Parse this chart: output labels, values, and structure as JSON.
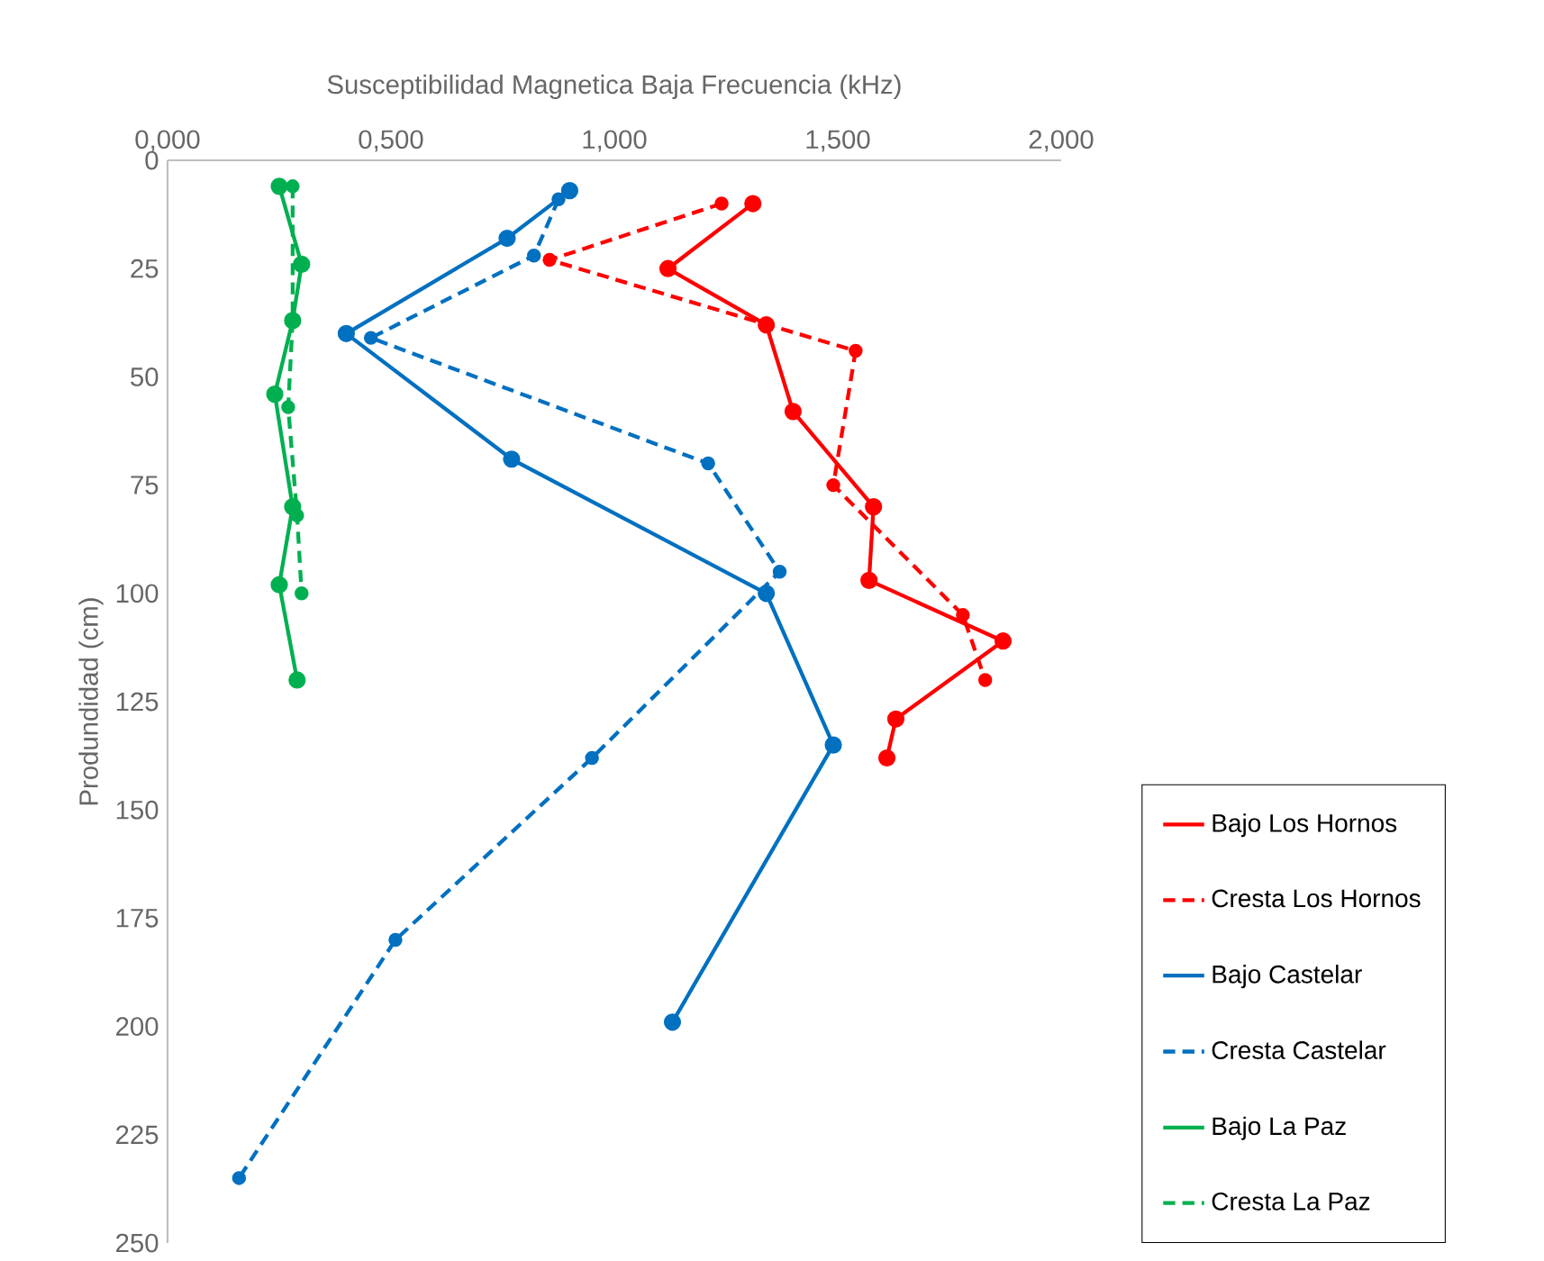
{
  "chart_data": {
    "type": "line",
    "xlabel": "Susceptibilidad Magnetica Baja Frecuencia (kHz)",
    "ylabel": "Produndidad (cm)",
    "xlim": [
      0,
      2
    ],
    "ylim": [
      250,
      0
    ],
    "xticks": [
      {
        "value": 0,
        "label": "0,000"
      },
      {
        "value": 0.5,
        "label": "0,500"
      },
      {
        "value": 1,
        "label": "1,000"
      },
      {
        "value": 1.5,
        "label": "1,500"
      },
      {
        "value": 2,
        "label": "2,000"
      }
    ],
    "yticks": [
      0,
      25,
      50,
      75,
      100,
      125,
      150,
      175,
      200,
      225,
      250
    ],
    "legend": "right",
    "marker": "circle",
    "series": [
      {
        "name": "Bajo Los Hornos",
        "color": "#ff0000",
        "line_style": "solid",
        "x": [
          1.31,
          1.12,
          1.34,
          1.4,
          1.58,
          1.57,
          1.87,
          1.63,
          1.61
        ],
        "values": [
          10,
          25,
          38,
          58,
          80,
          97,
          111,
          129,
          138
        ]
      },
      {
        "name": "Cresta Los Hornos",
        "color": "#ff0000",
        "line_style": "dashed",
        "x": [
          1.24,
          0.855,
          1.54,
          1.49,
          1.78,
          1.83
        ],
        "values": [
          10,
          23,
          44,
          75,
          105,
          120
        ]
      },
      {
        "name": "Bajo Castelar",
        "color": "#0070c0",
        "line_style": "solid",
        "x": [
          0.9,
          0.76,
          0.4,
          0.77,
          1.34,
          1.49,
          1.13
        ],
        "values": [
          7,
          18,
          40,
          69,
          100,
          135,
          199
        ]
      },
      {
        "name": "Cresta  Castelar",
        "color": "#0070c0",
        "line_style": "dashed",
        "x": [
          0.875,
          0.82,
          0.455,
          1.21,
          1.37,
          0.95,
          0.51,
          0.16
        ],
        "values": [
          9,
          22,
          41,
          70,
          95,
          138,
          180,
          235
        ]
      },
      {
        "name": "Bajo La Paz",
        "color": "#00b050",
        "line_style": "solid",
        "x": [
          0.25,
          0.3,
          0.28,
          0.24,
          0.28,
          0.25,
          0.29
        ],
        "values": [
          6,
          24,
          37,
          54,
          80,
          98,
          120
        ]
      },
      {
        "name": "Cresta La Paz",
        "color": "#00b050",
        "line_style": "dashed",
        "x": [
          0.28,
          0.28,
          0.27,
          0.29,
          0.3
        ],
        "values": [
          6,
          37,
          57,
          82,
          100
        ]
      }
    ]
  }
}
